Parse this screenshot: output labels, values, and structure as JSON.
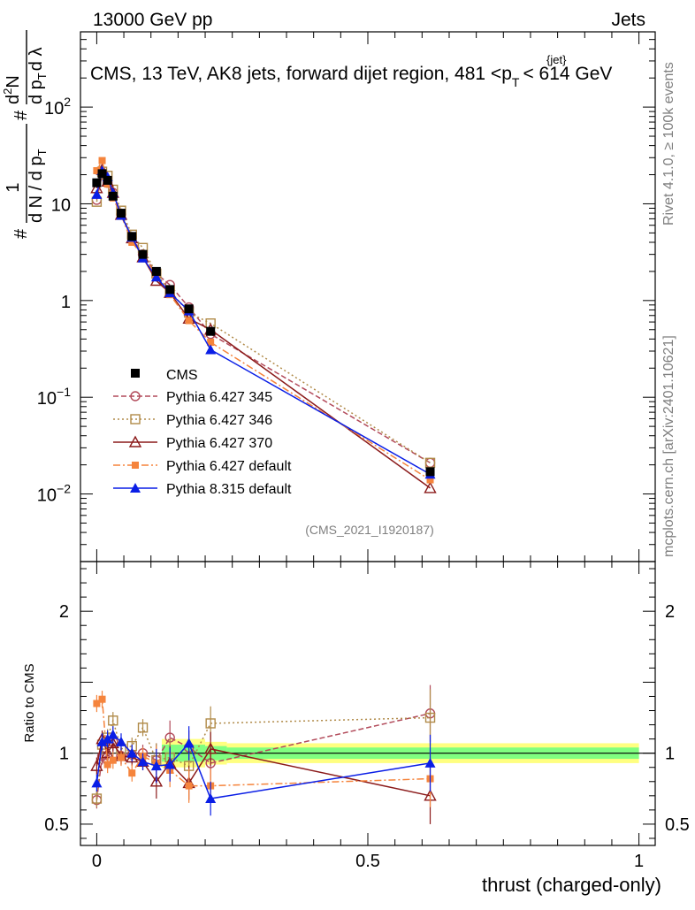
{
  "header": {
    "beam": "13000 GeV pp",
    "category": "Jets",
    "side_rivet": "Rivet 4.1.0, ≥ 100k events",
    "side_site": "mcplots.cern.ch [arXiv:2401.10621]",
    "analysis_id": "(CMS_2021_I1920187)"
  },
  "colors": {
    "cms": "#000000",
    "p345": "#b24a5a",
    "p346": "#b08a48",
    "p370": "#8b1a1a",
    "pdef": "#f5843c",
    "p8": "#0a1ee6",
    "band_outer": "#ffff80",
    "band_inner": "#80ff80"
  },
  "chart_data": {
    "type": "line",
    "title": "CMS, 13 TeV, AK8 jets, forward dijet region, 481 <p",
    "title_sup": "{jet}",
    "title_sub": "T",
    "title_tail": "< 614 GeV",
    "ylabel": {
      "frac_num": "1",
      "frac_den": "d N / d p",
      "frac_den_sub": "T",
      "pre": "#",
      "mid": "#",
      "mid_num": "d",
      "mid_num_sup": "2",
      "mid_num_tail": "N",
      "mid_den": "d p",
      "mid_den_sub": "T",
      "mid_den_tail": "d λ"
    },
    "xlabel": "thrust (charged-only)",
    "ratio_ylabel": "Ratio to CMS",
    "xlim": [
      -0.03,
      1.03
    ],
    "ylim_log": [
      0.002,
      600
    ],
    "ratio_ylim": [
      0.35,
      2.35
    ],
    "x_ticks": [
      0,
      0.5,
      1
    ],
    "x_tick_labels": [
      "0",
      "0.5",
      "1"
    ],
    "y_ticks": [
      0.01,
      0.1,
      1,
      10,
      100
    ],
    "y_tick_labels": [
      {
        "base": "10",
        "exp": "−2"
      },
      {
        "base": "10",
        "exp": "−1"
      },
      {
        "base": "1",
        "exp": ""
      },
      {
        "base": "10",
        "exp": ""
      },
      {
        "base": "10",
        "exp": "2"
      }
    ],
    "ratio_ticks": [
      0.5,
      1,
      2
    ],
    "ratio_tick_labels": [
      "0.5",
      "1",
      "2"
    ],
    "x": [
      0.0,
      0.01,
      0.02,
      0.03,
      0.045,
      0.065,
      0.085,
      0.11,
      0.135,
      0.17,
      0.21,
      0.615
    ],
    "cms": [
      16.5,
      20.5,
      17.5,
      12,
      8.0,
      4.6,
      3.0,
      2.0,
      1.3,
      0.82,
      0.48,
      0.017
    ],
    "series": [
      {
        "name": "Pythia 6.427 345",
        "key": "p345",
        "marker": "circle",
        "dash": "6,3",
        "values": [
          11,
          20,
          16.5,
          13,
          7.8,
          4.5,
          3.0,
          1.9,
          1.45,
          0.85,
          0.45,
          0.021
        ],
        "ratio": [
          0.67,
          0.98,
          0.95,
          1.08,
          0.98,
          0.99,
          1.0,
          0.95,
          1.11,
          1.04,
          0.93,
          1.28
        ]
      },
      {
        "name": "Pythia 6.427 346",
        "key": "p346",
        "marker": "square",
        "dash": "2,3",
        "values": [
          10.5,
          21.5,
          19.5,
          14,
          8.5,
          4.8,
          3.5,
          1.9,
          1.25,
          0.75,
          0.58,
          0.021
        ],
        "ratio": [
          0.68,
          1.06,
          1.11,
          1.23,
          1.03,
          1.05,
          1.18,
          0.95,
          0.97,
          0.91,
          1.21,
          1.25
        ]
      },
      {
        "name": "Pythia 6.427 370",
        "key": "p370",
        "marker": "triangle",
        "dash": "",
        "values": [
          14.5,
          22.5,
          17,
          13,
          7.7,
          4.4,
          2.8,
          1.6,
          1.2,
          0.65,
          0.5,
          0.0115
        ],
        "ratio": [
          0.91,
          1.1,
          1.0,
          1.07,
          0.98,
          0.97,
          0.94,
          0.8,
          0.93,
          0.79,
          1.03,
          0.7
        ]
      },
      {
        "name": "Pythia 6.427 default",
        "key": "pdef",
        "marker": "fsquare",
        "dash": "8,3,2,3",
        "values": [
          22,
          28,
          16,
          11.5,
          7.6,
          4.0,
          2.9,
          1.85,
          1.15,
          0.62,
          0.37,
          0.014
        ],
        "ratio": [
          1.35,
          1.38,
          0.92,
          0.95,
          0.97,
          0.86,
          0.98,
          0.93,
          0.88,
          0.77,
          0.77,
          0.82
        ]
      },
      {
        "name": "Pythia 8.315 default",
        "key": "p8",
        "marker": "ftriangle",
        "dash": "",
        "values": [
          12.5,
          22,
          19,
          13,
          7.6,
          4.5,
          2.75,
          1.75,
          1.2,
          0.78,
          0.31,
          0.016
        ],
        "ratio": [
          0.79,
          1.08,
          1.1,
          1.13,
          1.08,
          1.0,
          0.94,
          0.91,
          0.92,
          1.07,
          0.68,
          0.93
        ]
      }
    ]
  }
}
